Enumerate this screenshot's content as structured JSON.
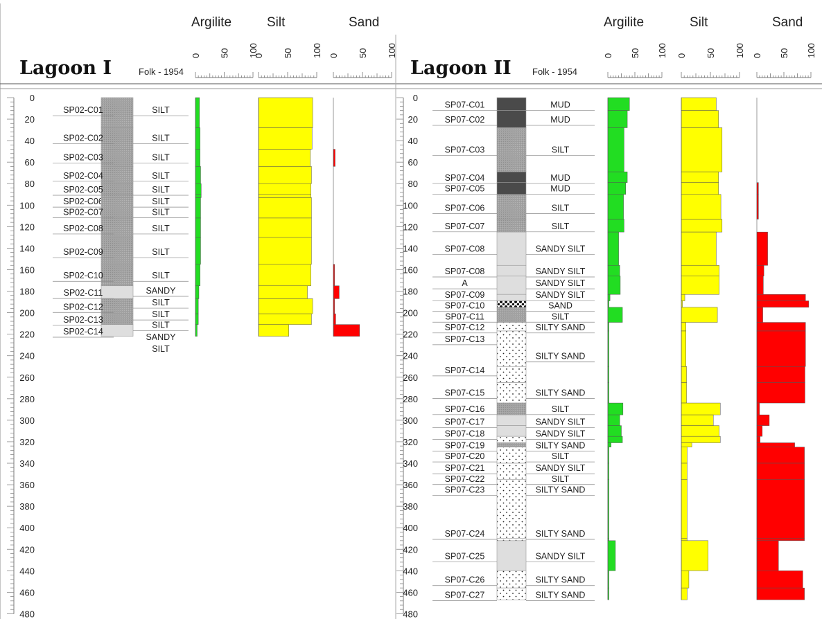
{
  "chart_data": {
    "type": "stratigraphic-log",
    "panels": [
      {
        "title": "Lagoon I",
        "classification_label": "Folk - 1954",
        "depth_ticks": [
          0,
          20,
          40,
          60,
          80,
          100,
          120,
          140,
          160,
          180,
          200,
          220,
          240,
          260,
          280,
          300,
          320,
          340,
          360,
          380,
          400,
          420,
          440,
          460,
          480
        ],
        "curve_headers": [
          "Argilite",
          "Silt",
          "Sand"
        ],
        "curve_ticks": [
          "0",
          "50",
          "100"
        ],
        "samples": [
          {
            "id": "SP02-C01",
            "top": 0,
            "bottom": 28,
            "label_depth": 11,
            "folk": "SILT",
            "folk_depth": 11,
            "pattern": "silt",
            "argilite": 7,
            "silt": 93,
            "sand": 0
          },
          {
            "id": "SP02-C02",
            "top": 28,
            "bottom": 48,
            "label_depth": 37,
            "folk": "SILT",
            "folk_depth": 37,
            "pattern": "silt",
            "argilite": 8,
            "silt": 92,
            "sand": 0
          },
          {
            "id": "SP02-C03",
            "top": 48,
            "bottom": 64,
            "label_depth": 55,
            "folk": "SILT",
            "folk_depth": 55,
            "pattern": "silt",
            "argilite": 8,
            "silt": 89,
            "sand": 3
          },
          {
            "id": "SP02-C04",
            "top": 64,
            "bottom": 80,
            "label_depth": 72,
            "folk": "SILT",
            "folk_depth": 72,
            "pattern": "silt",
            "argilite": 9,
            "silt": 91,
            "sand": 0
          },
          {
            "id": "SP02-C05",
            "top": 80,
            "bottom": 90,
            "label_depth": 85,
            "folk": "SILT",
            "folk_depth": 85,
            "pattern": "silt",
            "argilite": 10,
            "silt": 90,
            "sand": 0
          },
          {
            "id": "SP02-C06",
            "top": 90,
            "bottom": 93,
            "label_depth": 96,
            "folk": "SILT",
            "folk_depth": 96,
            "pattern": "silt",
            "argilite": 10,
            "silt": 90,
            "sand": 0
          },
          {
            "id": "SP02-C07",
            "top": 93,
            "bottom": 112,
            "label_depth": 106,
            "folk": "SILT",
            "folk_depth": 106,
            "pattern": "silt",
            "argilite": 9,
            "silt": 91,
            "sand": 0
          },
          {
            "id": "SP02-C08",
            "top": 112,
            "bottom": 130,
            "label_depth": 121,
            "folk": "SILT",
            "folk_depth": 121,
            "pattern": "silt",
            "argilite": 9,
            "silt": 91,
            "sand": 0
          },
          {
            "id": "SP02-C09",
            "top": 130,
            "bottom": 155,
            "label_depth": 143,
            "folk": "SILT",
            "folk_depth": 143,
            "pattern": "silt",
            "argilite": 9,
            "silt": 91,
            "sand": 0
          },
          {
            "id": "SP02-C10",
            "top": 155,
            "bottom": 175,
            "label_depth": 165,
            "folk": "SILT",
            "folk_depth": 165,
            "pattern": "silt",
            "argilite": 8,
            "silt": 90,
            "sand": 2
          },
          {
            "id": "SP02-C11",
            "top": 175,
            "bottom": 187,
            "label_depth": 181,
            "folk": "SANDY",
            "folk_depth": 179,
            "pattern": "sandysilt",
            "argilite": 6,
            "silt": 84,
            "sand": 10
          },
          {
            "id": "SP02-C12",
            "top": 187,
            "bottom": 201,
            "label_depth": 194,
            "folk": "SILT",
            "folk_depth": 190,
            "pattern": "silt",
            "argilite": 5,
            "silt": 93,
            "sand": 2
          },
          {
            "id": "SP02-C13",
            "top": 201,
            "bottom": 211,
            "label_depth": 206,
            "folk": "SILT",
            "folk_depth": 201,
            "pattern": "silt",
            "argilite": 5,
            "silt": 91,
            "sand": 4
          },
          {
            "id": "SP02-C14",
            "top": 211,
            "bottom": 222,
            "label_depth": 217,
            "folk": "SILT",
            "folk_depth": 211,
            "pattern": "sandysilt",
            "argilite": 3,
            "silt": 52,
            "sand": 45
          }
        ],
        "extra_folk": [
          {
            "text": "SANDY",
            "depth": 222
          },
          {
            "text": "SILT",
            "depth": 233
          }
        ]
      },
      {
        "title": "Lagoon II",
        "classification_label": "Folk - 1954",
        "depth_ticks": [
          0,
          20,
          40,
          60,
          80,
          100,
          120,
          140,
          160,
          180,
          200,
          220,
          240,
          260,
          280,
          300,
          320,
          340,
          360,
          380,
          400,
          420,
          440,
          460,
          480
        ],
        "curve_headers": [
          "Argilite",
          "Silt",
          "Sand"
        ],
        "curve_ticks": [
          "0",
          "50",
          "100"
        ],
        "samples": [
          {
            "id": "SP07-C01",
            "top": 0,
            "bottom": 12,
            "label_depth": 6,
            "folk": "MUD",
            "folk_depth": 6,
            "pattern": "mud",
            "argilite": 40,
            "silt": 60,
            "sand": 0
          },
          {
            "id": "SP07-C02",
            "top": 12,
            "bottom": 28,
            "label_depth": 20,
            "folk": "MUD",
            "folk_depth": 20,
            "pattern": "mud",
            "argilite": 36,
            "silt": 64,
            "sand": 0
          },
          {
            "id": "SP07-C03",
            "top": 28,
            "bottom": 69,
            "label_depth": 48,
            "folk": "SILT",
            "folk_depth": 48,
            "pattern": "silt",
            "argilite": 30,
            "silt": 70,
            "sand": 0
          },
          {
            "id": "SP07-C04",
            "top": 69,
            "bottom": 79,
            "label_depth": 74,
            "folk": "MUD",
            "folk_depth": 74,
            "pattern": "mud",
            "argilite": 36,
            "silt": 64,
            "sand": 0
          },
          {
            "id": "SP07-C05",
            "top": 79,
            "bottom": 90,
            "label_depth": 84,
            "folk": "MUD",
            "folk_depth": 84,
            "pattern": "mud",
            "argilite": 33,
            "silt": 64,
            "sand": 3
          },
          {
            "id": "SP07-C06",
            "top": 90,
            "bottom": 113,
            "label_depth": 102,
            "folk": "SILT",
            "folk_depth": 102,
            "pattern": "silt",
            "argilite": 29,
            "silt": 68,
            "sand": 3
          },
          {
            "id": "SP07-C07",
            "top": 113,
            "bottom": 125,
            "label_depth": 119,
            "folk": "SILT",
            "folk_depth": 119,
            "pattern": "silt",
            "argilite": 30,
            "silt": 70,
            "sand": 0
          },
          {
            "id": "SP07-C08",
            "top": 125,
            "bottom": 156,
            "label_depth": 140,
            "folk": "SANDY SILT",
            "folk_depth": 140,
            "pattern": "sandysilt",
            "argilite": 20,
            "silt": 60,
            "sand": 20
          },
          {
            "id": "SP07-C08",
            "top": 156,
            "bottom": 166,
            "label_depth": 161,
            "folk": "SANDY SILT",
            "folk_depth": 161,
            "pattern": "sandysilt",
            "argilite": 22,
            "silt": 65,
            "sand": 13
          },
          {
            "id": "A",
            "top": 166,
            "bottom": 183,
            "label_depth": 172,
            "folk": "SANDY SILT",
            "folk_depth": 172,
            "pattern": "sandysilt",
            "argilite": 23,
            "silt": 65,
            "sand": 12
          },
          {
            "id": "SP07-C09",
            "top": 183,
            "bottom": 189,
            "label_depth": 183,
            "folk": "SANDY SILT",
            "folk_depth": 183,
            "pattern": "sandysilt",
            "argilite": 4,
            "silt": 6,
            "sand": 90
          },
          {
            "id": "SP07-C10",
            "top": 189,
            "bottom": 195,
            "label_depth": 193,
            "folk": "SAND",
            "folk_depth": 193,
            "pattern": "sand",
            "argilite": 2,
            "silt": 2,
            "sand": 96
          },
          {
            "id": "SP07-C11",
            "top": 195,
            "bottom": 209,
            "label_depth": 203,
            "folk": "SILT",
            "folk_depth": 203,
            "pattern": "silt",
            "argilite": 27,
            "silt": 62,
            "sand": 11
          },
          {
            "id": "SP07-C12",
            "top": 209,
            "bottom": 217,
            "label_depth": 213,
            "folk": "SILTY SAND",
            "folk_depth": 213,
            "pattern": "siltysand",
            "argilite": 2,
            "silt": 8,
            "sand": 90
          },
          {
            "id": "SP07-C13",
            "top": 217,
            "bottom": 250,
            "label_depth": 224,
            "folk": "SILTY SAND",
            "folk_depth": 240,
            "pattern": "siltysand",
            "argilite": 2,
            "silt": 8,
            "sand": 90
          },
          {
            "id": "SP07-C14",
            "top": 250,
            "bottom": 265,
            "label_depth": 253,
            "folk": "",
            "folk_depth": 253,
            "pattern": "siltysand",
            "argilite": 2,
            "silt": 9,
            "sand": 89
          },
          {
            "id": "SP07-C15",
            "top": 265,
            "bottom": 284,
            "label_depth": 274,
            "folk": "SILTY SAND",
            "folk_depth": 274,
            "pattern": "siltysand",
            "argilite": 2,
            "silt": 9,
            "sand": 89
          },
          {
            "id": "SP07-C16",
            "top": 284,
            "bottom": 295,
            "label_depth": 289,
            "folk": "SILT",
            "folk_depth": 289,
            "pattern": "silt",
            "argilite": 28,
            "silt": 67,
            "sand": 5
          },
          {
            "id": "SP07-C17",
            "top": 295,
            "bottom": 305,
            "label_depth": 301,
            "folk": "SANDY SILT",
            "folk_depth": 301,
            "pattern": "sandysilt",
            "argilite": 22,
            "silt": 55,
            "sand": 23
          },
          {
            "id": "SP07-C18",
            "top": 305,
            "bottom": 315,
            "label_depth": 312,
            "folk": "SANDY SILT",
            "folk_depth": 312,
            "pattern": "sandysilt",
            "argilite": 25,
            "silt": 65,
            "sand": 10
          },
          {
            "id": "SP07-C19",
            "top": 315,
            "bottom": 321,
            "label_depth": 323,
            "folk": "SILTY SAND",
            "folk_depth": 323,
            "pattern": "siltysand",
            "argilite": 27,
            "silt": 67,
            "sand": 6
          },
          {
            "id": "SP07-C20",
            "top": 321,
            "bottom": 325,
            "label_depth": 333,
            "folk": "SILT",
            "folk_depth": 333,
            "pattern": "silt",
            "argilite": 6,
            "silt": 18,
            "sand": 70
          },
          {
            "id": "SP07-C21",
            "top": 325,
            "bottom": 340,
            "label_depth": 344,
            "folk": "SANDY SILT",
            "folk_depth": 344,
            "pattern": "siltysand",
            "argilite": 2,
            "silt": 10,
            "sand": 88
          },
          {
            "id": "SP07-C22",
            "top": 340,
            "bottom": 355,
            "label_depth": 354,
            "folk": "SILT",
            "folk_depth": 354,
            "pattern": "siltysand",
            "argilite": 2,
            "silt": 10,
            "sand": 88
          },
          {
            "id": "SP07-C23",
            "top": 355,
            "bottom": 410,
            "label_depth": 364,
            "folk": "SILTY SAND",
            "folk_depth": 364,
            "pattern": "siltysand",
            "argilite": 2,
            "silt": 10,
            "sand": 88
          },
          {
            "id": "SP07-C24",
            "top": 410,
            "bottom": 412,
            "label_depth": 405,
            "folk": "SILTY SAND",
            "folk_depth": 405,
            "pattern": "siltysand",
            "argilite": 2,
            "silt": 10,
            "sand": 88
          },
          {
            "id": "SP07-C25",
            "top": 412,
            "bottom": 440,
            "label_depth": 426,
            "folk": "SANDY SILT",
            "folk_depth": 426,
            "pattern": "sandysilt",
            "argilite": 14,
            "silt": 46,
            "sand": 40
          },
          {
            "id": "SP07-C26",
            "top": 440,
            "bottom": 456,
            "label_depth": 448,
            "folk": "SILTY SAND",
            "folk_depth": 448,
            "pattern": "siltysand",
            "argilite": 2,
            "silt": 13,
            "sand": 85
          },
          {
            "id": "SP07-C27",
            "top": 456,
            "bottom": 467,
            "label_depth": 462,
            "folk": "SILTY SAND",
            "folk_depth": 462,
            "pattern": "siltysand",
            "argilite": 2,
            "silt": 10,
            "sand": 88
          }
        ],
        "extra_folk": []
      }
    ],
    "colors": {
      "argilite": "#22dd22",
      "silt": "#ffff00",
      "sand": "#ff0000",
      "mud": "#4a4a4a",
      "silt_litho": "#9b9b9b",
      "sandysilt_litho": "#dedede"
    }
  }
}
